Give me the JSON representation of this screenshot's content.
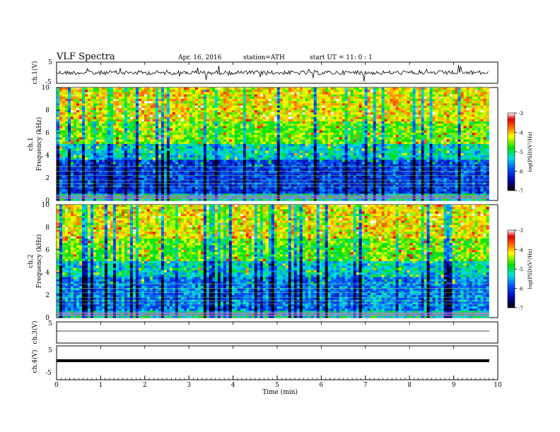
{
  "header": {
    "title": "VLF  Spectra",
    "date": "Apr. 16, 2016",
    "station": "station=ATH",
    "start": "start  UT  =   11: 0   : 1"
  },
  "chart_data": [
    {
      "type": "line",
      "panel": "ch1-waveform",
      "ylabel": "ch.1(V)",
      "ylim": [
        -5,
        5
      ],
      "yticks": [
        "5",
        "-5"
      ],
      "xlim": [
        0,
        10
      ]
    },
    {
      "type": "heatmap",
      "panel": "ch1-spectrogram",
      "ylabel": [
        "ch.1",
        "Frequency  (kHz)"
      ],
      "ylim": [
        0,
        10
      ],
      "yticks": [
        "0",
        "2",
        "4",
        "6",
        "8",
        "10"
      ],
      "xlim": [
        0,
        9.8
      ],
      "colorbar": {
        "label": "log(PSD)(V²/Hz)",
        "range": [
          -7,
          -3
        ],
        "ticks": [
          "-3",
          "-4",
          "-5",
          "-6",
          "-7"
        ]
      }
    },
    {
      "type": "heatmap",
      "panel": "ch2-spectrogram",
      "ylabel": [
        "ch.2",
        "Frequency  (kHz)"
      ],
      "ylim": [
        0,
        10
      ],
      "yticks": [
        "0",
        "2",
        "4",
        "6",
        "8",
        "10"
      ],
      "xlim": [
        0,
        9.8
      ],
      "colorbar": {
        "label": "log(PSD)(V²/Hz)",
        "range": [
          -7,
          -3
        ],
        "ticks": [
          "-3",
          "-4",
          "-5",
          "-6",
          "-7"
        ]
      }
    },
    {
      "type": "line",
      "panel": "ch3-waveform",
      "ylabel": "ch.3(V)",
      "ylim": [
        -5,
        5
      ],
      "yticks": [
        "5"
      ],
      "xlim": [
        0,
        10
      ]
    },
    {
      "type": "line",
      "panel": "ch4-waveform",
      "ylabel": "ch.4(V)",
      "ylim": [
        -5,
        5
      ],
      "yticks": [
        "5",
        "-5"
      ],
      "xlim": [
        0,
        10
      ]
    }
  ],
  "xaxis": {
    "label": "Time  (min)",
    "ticks": [
      "0",
      "1",
      "2",
      "3",
      "4",
      "5",
      "6",
      "7",
      "8",
      "9",
      "10"
    ]
  }
}
